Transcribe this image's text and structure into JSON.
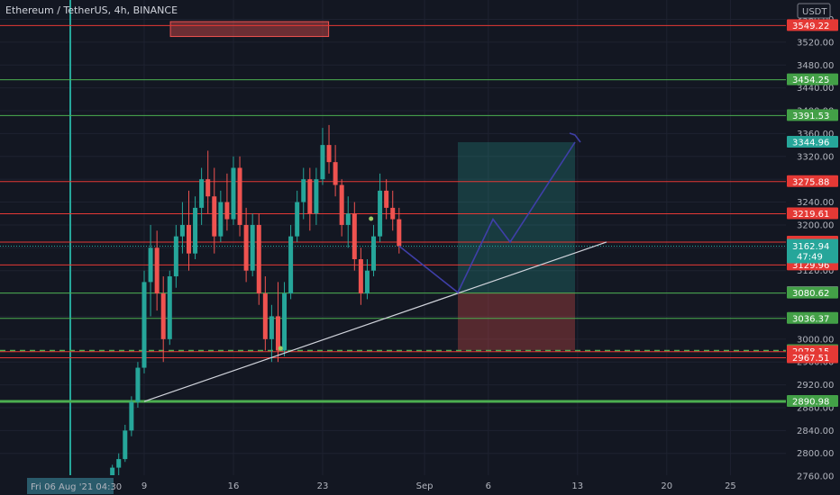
{
  "header": {
    "title": "Ethereum / TetherUS, 4h, BINANCE"
  },
  "colors": {
    "background": "#131722",
    "up": "#26a69a",
    "down": "#ef5350",
    "red_line": "#e53935",
    "green_line": "#4caf50",
    "path": "#3f3fa8",
    "trend": "#d1d4dc",
    "current": "#26a69a"
  },
  "chart_data": {
    "type": "candlestick",
    "title": "Ethereum / TetherUS, 4h, BINANCE",
    "currency_label": "USDT",
    "ylim": [
      2728,
      3556
    ],
    "x_days": [
      -1.5,
      29.5
    ],
    "y_ticks": [
      2760,
      2800,
      2840,
      2880,
      2920,
      2960,
      3000,
      3040,
      3080,
      3120,
      3160,
      3200,
      3240,
      3280,
      3320,
      3360,
      3400,
      3440,
      3480,
      3520,
      3560
    ],
    "y_tick_labels": [
      "2760.00",
      "2800.00",
      "2840.00",
      "2880.00",
      "2920.00",
      "2960.00",
      "3000.00",
      "3040.00",
      "3080.00",
      "3120.00",
      "3160.00",
      "3200.00",
      "3240.00",
      "3280.00",
      "3320.00",
      "3360.00",
      "3400.00",
      "3440.00",
      "3480.00",
      "3520.00",
      "3560.00"
    ],
    "x_ticks": [
      {
        "day": 9,
        "label": "9"
      },
      {
        "day": 16,
        "label": "16"
      },
      {
        "day": 23,
        "label": "23"
      },
      {
        "day": 31,
        "label": "Sep"
      },
      {
        "day": 36,
        "label": "6"
      },
      {
        "day": 43,
        "label": "13"
      },
      {
        "day": 50,
        "label": "20"
      },
      {
        "day": 55,
        "label": "25"
      }
    ],
    "x_ticks_day_origin_note": "days counted from Aug 1",
    "cursor_label": "Fri 06 Aug '21  04:30",
    "horizontal_levels": [
      {
        "price": 3549.22,
        "label": "3549.22",
        "color": "red"
      },
      {
        "price": 3454.25,
        "label": "3454.25",
        "color": "green"
      },
      {
        "price": 3391.53,
        "label": "3391.53",
        "color": "green"
      },
      {
        "price": 3344.96,
        "label": "3344.96",
        "color": "teal"
      },
      {
        "price": 3275.88,
        "label": "3275.88",
        "color": "red"
      },
      {
        "price": 3219.61,
        "label": "3219.61",
        "color": "red"
      },
      {
        "price": 3169.96,
        "label": "3169.96",
        "color": "red"
      },
      {
        "price": 3129.96,
        "label": "3129.96",
        "color": "red"
      },
      {
        "price": 3081.7,
        "label": "3081.70",
        "color": "grey"
      },
      {
        "price": 3080.62,
        "label": "3080.62",
        "color": "green"
      },
      {
        "price": 3036.37,
        "label": "3036.37",
        "color": "green"
      },
      {
        "price": 2980.06,
        "label": "2980.06",
        "color": "green_dashed"
      },
      {
        "price": 2978.15,
        "label": "2978.15",
        "color": "red"
      },
      {
        "price": 2967.51,
        "label": "2967.51",
        "color": "red"
      },
      {
        "price": 2890.98,
        "label": "2890.98",
        "color": "green_thick"
      }
    ],
    "current_price": {
      "price": 3162.94,
      "label": "3162.94",
      "countdown": "47:49"
    },
    "candles": [
      [
        6.0,
        2740,
        2752,
        2735,
        2748
      ],
      [
        6.5,
        2748,
        2780,
        2745,
        2775
      ],
      [
        7.0,
        2775,
        2800,
        2760,
        2790
      ],
      [
        7.5,
        2790,
        2850,
        2785,
        2840
      ],
      [
        8.0,
        2840,
        2900,
        2830,
        2890
      ],
      [
        8.5,
        2890,
        2960,
        2880,
        2950
      ],
      [
        9.0,
        2950,
        3120,
        2940,
        3100
      ],
      [
        9.5,
        3100,
        3200,
        3040,
        3160
      ],
      [
        10.0,
        3160,
        3190,
        3050,
        3080
      ],
      [
        10.5,
        3080,
        3110,
        2960,
        3000
      ],
      [
        11.0,
        3000,
        3120,
        2990,
        3110
      ],
      [
        11.5,
        3110,
        3200,
        3090,
        3180
      ],
      [
        12.0,
        3180,
        3240,
        3150,
        3200
      ],
      [
        12.5,
        3200,
        3260,
        3120,
        3150
      ],
      [
        13.0,
        3150,
        3250,
        3140,
        3230
      ],
      [
        13.5,
        3230,
        3300,
        3200,
        3280
      ],
      [
        14.0,
        3280,
        3330,
        3220,
        3250
      ],
      [
        14.5,
        3250,
        3300,
        3150,
        3180
      ],
      [
        15.0,
        3180,
        3260,
        3170,
        3240
      ],
      [
        15.5,
        3240,
        3290,
        3190,
        3210
      ],
      [
        16.0,
        3210,
        3320,
        3200,
        3300
      ],
      [
        16.5,
        3300,
        3320,
        3180,
        3200
      ],
      [
        17.0,
        3200,
        3230,
        3100,
        3120
      ],
      [
        17.5,
        3120,
        3220,
        3110,
        3200
      ],
      [
        18.0,
        3200,
        3220,
        3060,
        3080
      ],
      [
        18.5,
        3080,
        3110,
        2980,
        3000
      ],
      [
        19.0,
        3000,
        3060,
        2960,
        3040
      ],
      [
        19.5,
        3040,
        3100,
        2960,
        2980
      ],
      [
        20.0,
        2980,
        3100,
        2970,
        3080
      ],
      [
        20.5,
        3080,
        3200,
        3070,
        3180
      ],
      [
        21.0,
        3180,
        3260,
        3170,
        3240
      ],
      [
        21.5,
        3240,
        3300,
        3210,
        3280
      ],
      [
        22.0,
        3280,
        3300,
        3190,
        3220
      ],
      [
        22.5,
        3220,
        3300,
        3200,
        3280
      ],
      [
        23.0,
        3280,
        3370,
        3270,
        3340
      ],
      [
        23.5,
        3340,
        3375,
        3290,
        3310
      ],
      [
        24.0,
        3310,
        3340,
        3250,
        3270
      ],
      [
        24.5,
        3270,
        3280,
        3180,
        3200
      ],
      [
        25.0,
        3200,
        3250,
        3160,
        3220
      ],
      [
        25.5,
        3220,
        3240,
        3120,
        3140
      ],
      [
        26.0,
        3140,
        3160,
        3060,
        3080
      ],
      [
        26.5,
        3080,
        3140,
        3070,
        3120
      ],
      [
        27.0,
        3120,
        3200,
        3110,
        3180
      ],
      [
        27.5,
        3180,
        3290,
        3170,
        3260
      ],
      [
        28.0,
        3260,
        3280,
        3210,
        3230
      ],
      [
        28.5,
        3230,
        3260,
        3190,
        3210
      ],
      [
        29.0,
        3210,
        3230,
        3150,
        3163
      ]
    ],
    "long_position": {
      "x_from": 31.5,
      "x_to": 35.5,
      "entry": 3081.7,
      "target": 3344.96,
      "stop": 2980.06
    },
    "projection_path": [
      [
        29.0,
        3163
      ],
      [
        31.5,
        3081.7
      ],
      [
        33.0,
        3210
      ],
      [
        34.0,
        3170
      ],
      [
        35.6,
        3344.96
      ]
    ],
    "trendline": [
      [
        9.0,
        2890.98
      ],
      [
        36.5,
        3170
      ]
    ],
    "resistance_box": {
      "x_from": 9.5,
      "x_to": 20.5,
      "top": 3556,
      "bottom": 3530
    },
    "marker_points": [
      [
        19.7,
        2984
      ],
      [
        26.8,
        3211
      ]
    ]
  }
}
